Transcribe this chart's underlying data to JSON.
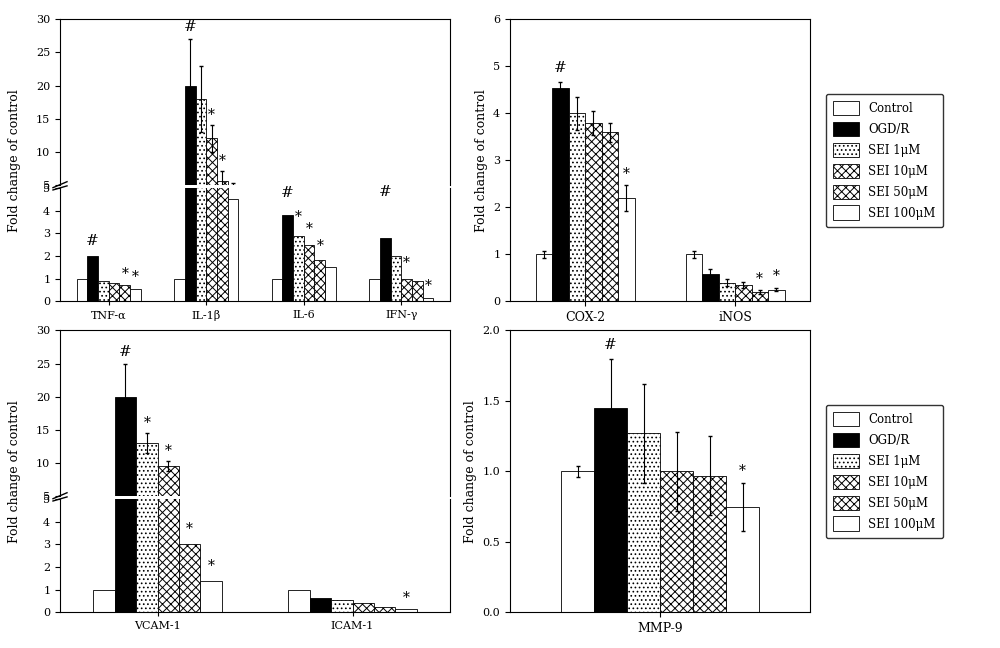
{
  "panel_TL": {
    "ylabel": "Fold change of control",
    "groups": [
      "TNF-α",
      "IL-1β",
      "IL-6",
      "IFN-γ"
    ],
    "values": [
      [
        1.0,
        2.0,
        0.9,
        0.8,
        0.7,
        0.55
      ],
      [
        1.0,
        20.0,
        18.0,
        12.0,
        5.5,
        4.5
      ],
      [
        1.0,
        3.8,
        2.9,
        2.5,
        1.8,
        1.5
      ],
      [
        1.0,
        2.8,
        2.0,
        1.0,
        0.9,
        0.15
      ]
    ],
    "errors": [
      [
        0.08,
        0.15,
        0.1,
        0.08,
        0.06,
        0.05
      ],
      [
        0.5,
        7.0,
        5.0,
        2.0,
        1.5,
        0.8
      ],
      [
        0.1,
        0.45,
        0.35,
        0.25,
        0.18,
        0.15
      ],
      [
        0.08,
        1.5,
        0.45,
        0.25,
        0.12,
        0.08
      ]
    ],
    "sig_hash": [
      true,
      true,
      true,
      true
    ],
    "sig_star": [
      [
        false,
        false,
        false,
        false,
        true,
        true
      ],
      [
        false,
        false,
        false,
        true,
        true,
        false
      ],
      [
        false,
        false,
        true,
        true,
        true,
        false
      ],
      [
        false,
        false,
        false,
        true,
        false,
        true
      ]
    ]
  },
  "panel_TR": {
    "ylabel": "Fold change of control",
    "ylim": [
      0,
      6
    ],
    "groups": [
      "COX-2",
      "iNOS"
    ],
    "values": [
      [
        1.0,
        4.55,
        4.0,
        3.8,
        3.6,
        2.2
      ],
      [
        1.0,
        0.58,
        0.4,
        0.35,
        0.2,
        0.25
      ]
    ],
    "errors": [
      [
        0.08,
        0.12,
        0.35,
        0.25,
        0.2,
        0.28
      ],
      [
        0.08,
        0.1,
        0.07,
        0.06,
        0.04,
        0.04
      ]
    ],
    "sig_hash": [
      true,
      false
    ],
    "sig_star": [
      [
        false,
        false,
        false,
        false,
        false,
        true
      ],
      [
        false,
        false,
        false,
        false,
        true,
        true
      ]
    ]
  },
  "panel_BL": {
    "ylabel": "Fold change of control",
    "groups": [
      "VCAM-1",
      "ICAM-1"
    ],
    "values": [
      [
        1.0,
        20.0,
        13.0,
        9.5,
        3.0,
        1.4
      ],
      [
        1.0,
        0.65,
        0.55,
        0.42,
        0.25,
        0.15
      ]
    ],
    "errors": [
      [
        0.15,
        5.0,
        1.5,
        0.7,
        0.2,
        0.18
      ],
      [
        0.1,
        0.1,
        0.1,
        0.07,
        0.04,
        0.03
      ]
    ],
    "sig_hash": [
      true,
      false
    ],
    "sig_star": [
      [
        false,
        false,
        true,
        true,
        true,
        true
      ],
      [
        false,
        false,
        false,
        false,
        false,
        true
      ]
    ]
  },
  "panel_BR": {
    "ylabel": "Fold change of control",
    "ylim": [
      0.0,
      2.0
    ],
    "groups": [
      "MMP-9"
    ],
    "values": [
      [
        1.0,
        1.45,
        1.27,
        1.0,
        0.97,
        0.75
      ]
    ],
    "errors": [
      [
        0.04,
        0.35,
        0.35,
        0.28,
        0.28,
        0.17
      ]
    ],
    "sig_hash": [
      true
    ],
    "sig_star": [
      [
        false,
        false,
        false,
        false,
        false,
        true
      ]
    ]
  },
  "series_labels": [
    "Control",
    "OGD/R",
    "SEI 1μM",
    "SEI 10μM",
    "SEI 50μM",
    "SEI 100μM"
  ],
  "facecolors": [
    "white",
    "black",
    "white",
    "white",
    "white",
    "white"
  ],
  "hatch_patterns": [
    "",
    "",
    "....",
    "xxxx",
    "XXXX",
    "===="
  ]
}
